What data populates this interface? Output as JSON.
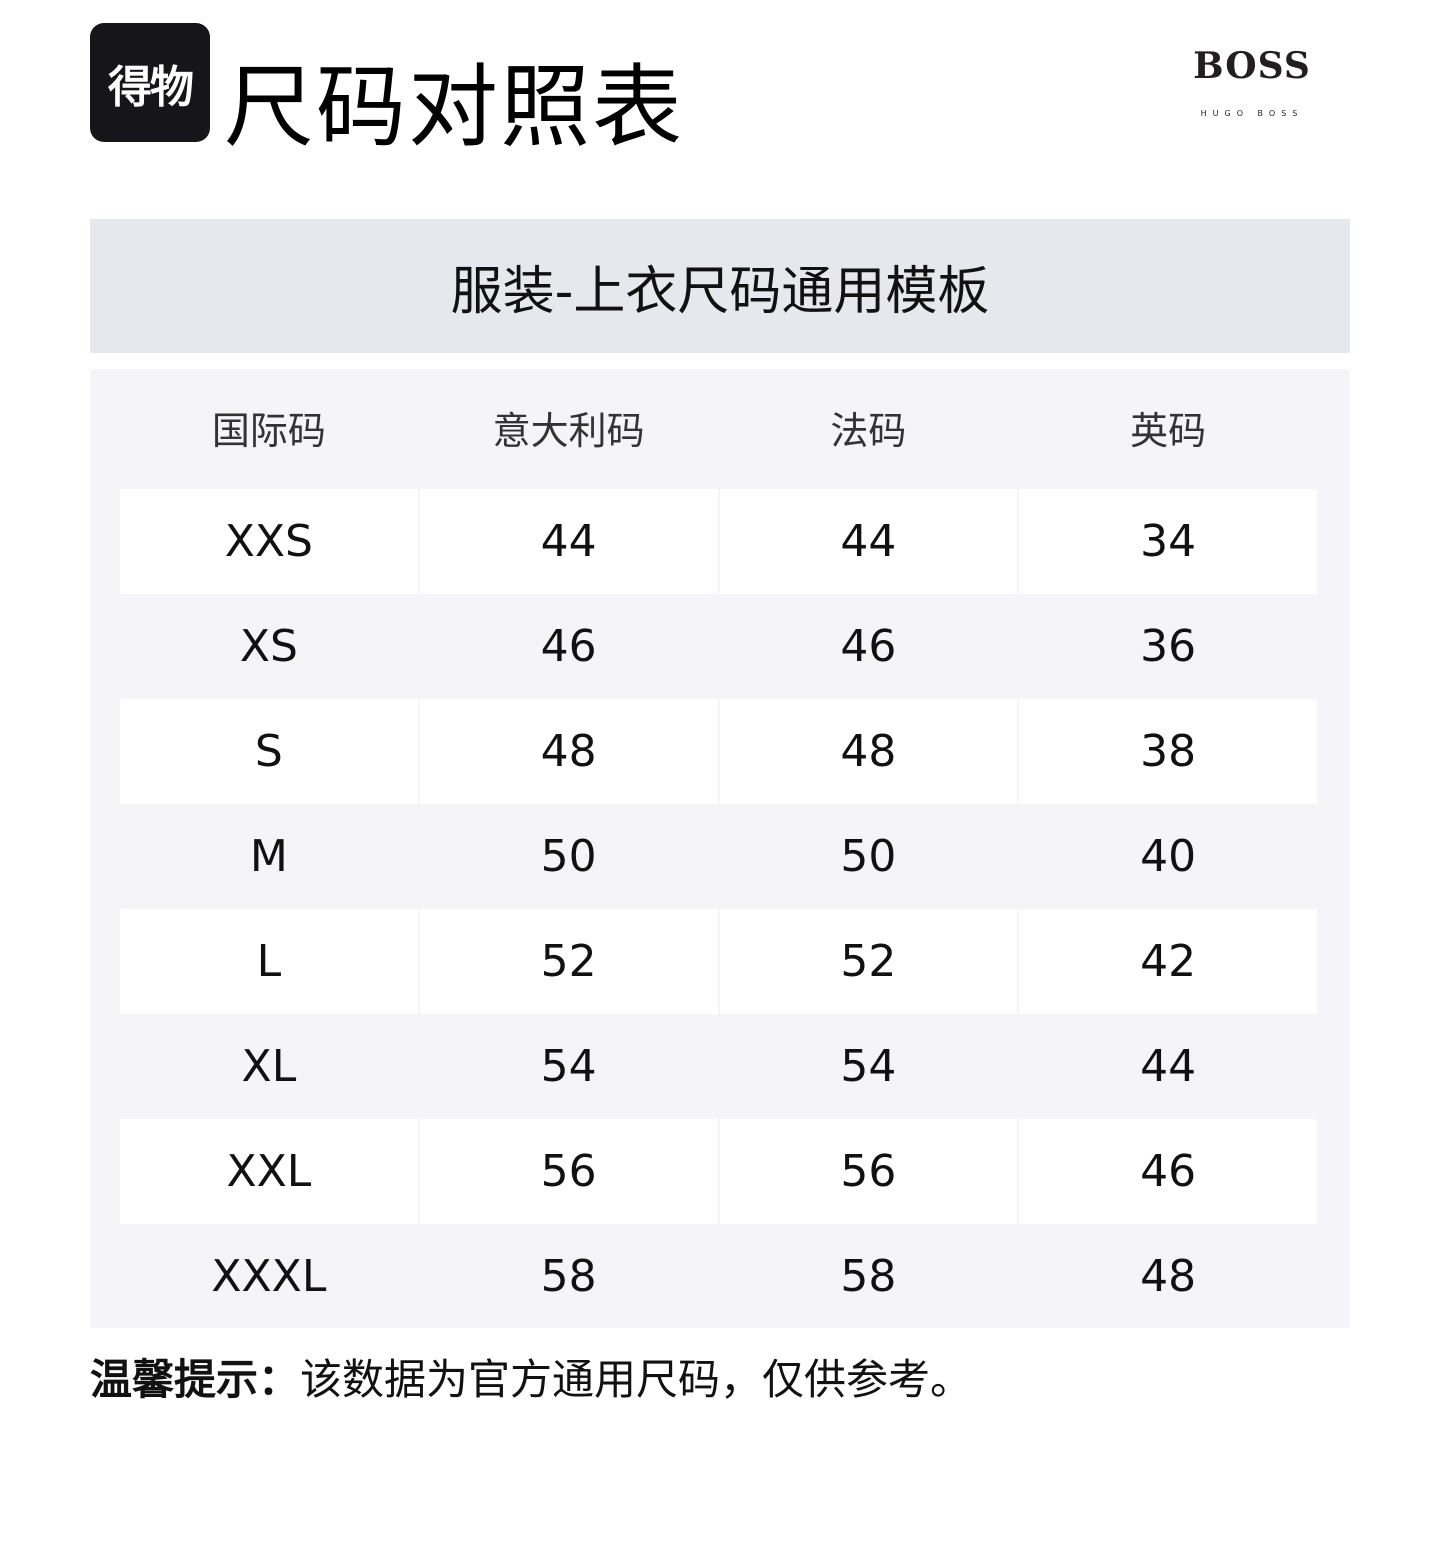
{
  "logo": {
    "text": "得物"
  },
  "title": "尺码对照表",
  "brand": {
    "name": "BOSS",
    "sub": "HUGO BOSS"
  },
  "subtitle": "服装-上衣尺码通用模板",
  "table": {
    "headers": [
      "国际码",
      "意大利码",
      "法码",
      "英码"
    ],
    "rows": [
      [
        "XXS",
        "44",
        "44",
        "34"
      ],
      [
        "XS",
        "46",
        "46",
        "36"
      ],
      [
        "S",
        "48",
        "48",
        "38"
      ],
      [
        "M",
        "50",
        "50",
        "40"
      ],
      [
        "L",
        "52",
        "52",
        "42"
      ],
      [
        "XL",
        "54",
        "54",
        "44"
      ],
      [
        "XXL",
        "56",
        "56",
        "46"
      ],
      [
        "XXXL",
        "58",
        "58",
        "48"
      ]
    ]
  },
  "note": {
    "label": "温馨提示：",
    "text": "该数据为官方通用尺码，仅供参考。"
  }
}
